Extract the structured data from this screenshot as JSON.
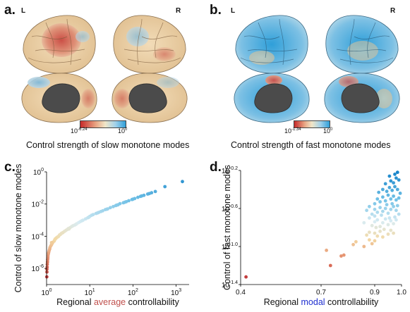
{
  "panels": {
    "a": {
      "letter": "a.",
      "left_tag": "L",
      "right_tag": "R",
      "cbar_min": "10",
      "cbar_min_exp": "-6.24",
      "cbar_max": "10",
      "cbar_max_exp": "0",
      "caption": "Control strength of slow monotone modes",
      "colors": {
        "low": "#c62a2a",
        "mid": "#f0e6c8",
        "high": "#2f9fd9"
      }
    },
    "b": {
      "letter": "b.",
      "left_tag": "L",
      "right_tag": "R",
      "cbar_min": "10",
      "cbar_min_exp": "-1.34",
      "cbar_max": "10",
      "cbar_max_exp": "0",
      "caption": "Control strength of fast monotone modes"
    },
    "c": {
      "letter": "c.",
      "xlabel_prefix": "Regional ",
      "xlabel_highlight": "average",
      "xlabel_suffix": " controllability",
      "ylabel": "Control of slow monotone modes",
      "highlight_color": "#c0504d"
    },
    "d": {
      "letter": "d.",
      "xlabel_prefix": "Regional ",
      "xlabel_highlight": "modal",
      "xlabel_suffix": " controllability",
      "ylabel": "Control of fast monotone modes",
      "highlight_color": "#1f2fd0"
    }
  },
  "chart_data": [
    {
      "type": "scatter",
      "panel": "c",
      "xscale": "log",
      "yscale": "log",
      "xlim": [
        1,
        2000
      ],
      "ylim": [
        1e-07,
        1
      ],
      "x_ticks": [
        {
          "value": 1,
          "base": "10",
          "exp": "0"
        },
        {
          "value": 10,
          "base": "10",
          "exp": "1"
        },
        {
          "value": 100,
          "base": "10",
          "exp": "2"
        },
        {
          "value": 1000,
          "base": "10",
          "exp": "3"
        }
      ],
      "y_ticks": [
        {
          "value": 1e-06,
          "base": "10",
          "exp": "-6"
        },
        {
          "value": 0.0001,
          "base": "10",
          "exp": "-4"
        },
        {
          "value": 0.01,
          "base": "10",
          "exp": "-2"
        },
        {
          "value": 1,
          "base": "10",
          "exp": "0"
        }
      ],
      "grid": false,
      "points": [
        [
          1.01,
          3e-07
        ],
        [
          1.02,
          6e-07
        ],
        [
          1.02,
          9e-07
        ],
        [
          1.03,
          1.2e-06
        ],
        [
          1.04,
          1.8e-06
        ],
        [
          1.05,
          2.5e-06
        ],
        [
          1.06,
          3.5e-06
        ],
        [
          1.07,
          4.5e-06
        ],
        [
          1.08,
          6e-06
        ],
        [
          1.1,
          8e-06
        ],
        [
          1.12,
          1e-05
        ],
        [
          1.15,
          1.3e-05
        ],
        [
          1.18,
          1.6e-05
        ],
        [
          1.2,
          2e-05
        ],
        [
          1.25,
          2.5e-05
        ],
        [
          1.3,
          3e-05
        ],
        [
          1.35,
          3.6e-05
        ],
        [
          1.4,
          4.2e-05
        ],
        [
          1.5,
          5e-05
        ],
        [
          1.55,
          6e-05
        ],
        [
          1.6,
          6.8e-05
        ],
        [
          1.7,
          8e-05
        ],
        [
          1.8,
          9e-05
        ],
        [
          1.9,
          0.0001
        ],
        [
          2.0,
          0.00012
        ],
        [
          2.1,
          0.00013
        ],
        [
          2.2,
          0.00015
        ],
        [
          2.4,
          0.00017
        ],
        [
          2.6,
          0.0002
        ],
        [
          2.8,
          0.00023
        ],
        [
          3.0,
          0.00026
        ],
        [
          3.2,
          0.0003
        ],
        [
          3.5,
          0.00034
        ],
        [
          3.8,
          0.0004
        ],
        [
          4.1,
          0.00045
        ],
        [
          4.5,
          0.0005
        ],
        [
          5.0,
          0.0006
        ],
        [
          5.5,
          0.0007
        ],
        [
          6.0,
          0.0008
        ],
        [
          6.5,
          0.0009
        ],
        [
          7.0,
          0.001
        ],
        [
          8.0,
          0.0012
        ],
        [
          9.0,
          0.0014
        ],
        [
          10,
          0.0017
        ],
        [
          11,
          0.002
        ],
        [
          12,
          0.0022
        ],
        [
          14,
          0.0026
        ],
        [
          16,
          0.003
        ],
        [
          18,
          0.0034
        ],
        [
          20,
          0.0038
        ],
        [
          23,
          0.0045
        ],
        [
          26,
          0.005
        ],
        [
          30,
          0.006
        ],
        [
          35,
          0.007
        ],
        [
          40,
          0.008
        ],
        [
          45,
          0.009
        ],
        [
          50,
          0.0105
        ],
        [
          60,
          0.012
        ],
        [
          70,
          0.014
        ],
        [
          80,
          0.016
        ],
        [
          95,
          0.019
        ],
        [
          110,
          0.022
        ],
        [
          130,
          0.026
        ],
        [
          150,
          0.03
        ],
        [
          180,
          0.035
        ],
        [
          220,
          0.042
        ],
        [
          270,
          0.05
        ],
        [
          330,
          0.06
        ],
        [
          550,
          0.12
        ],
        [
          1400,
          0.25
        ],
        [
          1.3,
          4e-05
        ],
        [
          1.6,
          7e-05
        ],
        [
          2.3,
          0.00016
        ],
        [
          3.3,
          0.00028
        ],
        [
          4.8,
          0.00055
        ],
        [
          6.8,
          0.00095
        ],
        [
          9.5,
          0.0015
        ],
        [
          15,
          0.0028
        ],
        [
          25,
          0.0048
        ],
        [
          42,
          0.0085
        ],
        [
          65,
          0.013
        ],
        [
          100,
          0.02
        ],
        [
          160,
          0.032
        ],
        [
          240,
          0.045
        ]
      ]
    },
    {
      "type": "scatter",
      "panel": "d",
      "xlim": [
        0.4,
        1.0
      ],
      "ylim": [
        -1.4,
        -0.2
      ],
      "x_ticks": [
        {
          "value": 0.4,
          "label": "0.4"
        },
        {
          "value": 0.7,
          "label": "0.7"
        },
        {
          "value": 0.9,
          "label": "0.9"
        },
        {
          "value": 1.0,
          "label": "1.0"
        }
      ],
      "y_ticks": [
        {
          "value": -0.2,
          "base": "10",
          "exp": "-0.2"
        },
        {
          "value": -0.6,
          "base": "10",
          "exp": "-0.6"
        },
        {
          "value": -1.0,
          "base": "10",
          "exp": "-1.0"
        },
        {
          "value": -1.4,
          "base": "10",
          "exp": "-1.4"
        }
      ],
      "grid": false,
      "points": [
        [
          0.42,
          -1.32
        ],
        [
          0.735,
          -1.2
        ],
        [
          0.72,
          -1.04
        ],
        [
          0.775,
          -1.1
        ],
        [
          0.785,
          -1.09
        ],
        [
          0.82,
          -0.98
        ],
        [
          0.83,
          -0.95
        ],
        [
          0.86,
          -1.0
        ],
        [
          0.88,
          -0.93
        ],
        [
          0.89,
          -0.97
        ],
        [
          0.9,
          -0.94
        ],
        [
          0.87,
          -0.88
        ],
        [
          0.88,
          -0.85
        ],
        [
          0.9,
          -0.86
        ],
        [
          0.91,
          -0.89
        ],
        [
          0.92,
          -0.84
        ],
        [
          0.93,
          -0.9
        ],
        [
          0.95,
          -0.87
        ],
        [
          0.96,
          -0.83
        ],
        [
          0.97,
          -0.86
        ],
        [
          0.86,
          -0.75
        ],
        [
          0.88,
          -0.7
        ],
        [
          0.89,
          -0.78
        ],
        [
          0.9,
          -0.74
        ],
        [
          0.91,
          -0.72
        ],
        [
          0.92,
          -0.79
        ],
        [
          0.93,
          -0.75
        ],
        [
          0.94,
          -0.71
        ],
        [
          0.95,
          -0.77
        ],
        [
          0.96,
          -0.73
        ],
        [
          0.97,
          -0.76
        ],
        [
          0.98,
          -0.72
        ],
        [
          0.87,
          -0.62
        ],
        [
          0.88,
          -0.58
        ],
        [
          0.89,
          -0.66
        ],
        [
          0.9,
          -0.61
        ],
        [
          0.91,
          -0.64
        ],
        [
          0.92,
          -0.59
        ],
        [
          0.93,
          -0.63
        ],
        [
          0.94,
          -0.6
        ],
        [
          0.95,
          -0.65
        ],
        [
          0.96,
          -0.61
        ],
        [
          0.97,
          -0.58
        ],
        [
          0.98,
          -0.62
        ],
        [
          0.99,
          -0.66
        ],
        [
          0.9,
          -0.55
        ],
        [
          0.91,
          -0.5
        ],
        [
          0.92,
          -0.53
        ],
        [
          0.93,
          -0.48
        ],
        [
          0.94,
          -0.52
        ],
        [
          0.95,
          -0.46
        ],
        [
          0.96,
          -0.5
        ],
        [
          0.97,
          -0.47
        ],
        [
          0.98,
          -0.51
        ],
        [
          0.99,
          -0.49
        ],
        [
          0.915,
          -0.43
        ],
        [
          0.93,
          -0.4
        ],
        [
          0.945,
          -0.42
        ],
        [
          0.955,
          -0.38
        ],
        [
          0.965,
          -0.41
        ],
        [
          0.975,
          -0.37
        ],
        [
          0.985,
          -0.4
        ],
        [
          0.94,
          -0.34
        ],
        [
          0.96,
          -0.31
        ],
        [
          0.97,
          -0.33
        ],
        [
          0.98,
          -0.28
        ],
        [
          0.99,
          -0.3
        ],
        [
          0.955,
          -0.26
        ],
        [
          0.975,
          -0.24
        ],
        [
          0.985,
          -0.22
        ],
        [
          0.9,
          -0.68
        ],
        [
          0.925,
          -0.67
        ],
        [
          0.945,
          -0.56
        ],
        [
          0.965,
          -0.55
        ],
        [
          0.985,
          -0.57
        ],
        [
          0.905,
          -0.8
        ],
        [
          0.935,
          -0.82
        ],
        [
          0.955,
          -0.7
        ],
        [
          0.975,
          -0.69
        ],
        [
          0.995,
          -0.44
        ]
      ]
    }
  ]
}
